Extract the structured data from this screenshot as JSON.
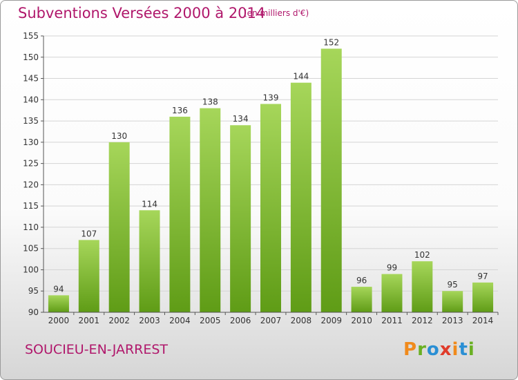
{
  "header": {
    "title": "Subventions Versées 2000 à 2014",
    "unit": "(en milliers d'€)"
  },
  "footer": {
    "commune": "SOUCIEU-EN-JARREST",
    "logo_letters": [
      "P",
      "r",
      "o",
      "x",
      "i",
      "t",
      "i"
    ],
    "logo_colors": [
      "#f08a1c",
      "#6ab023",
      "#2a8fd4",
      "#e03b2a",
      "#f08a1c",
      "#2a8fd4",
      "#6ab023"
    ]
  },
  "colors": {
    "bar_top": "#a6d65a",
    "bar_bottom": "#5f9c16",
    "grid": "#d4d4d4",
    "axis": "#555555",
    "text": "#333333"
  },
  "chart_data": {
    "type": "bar",
    "categories": [
      "2000",
      "2001",
      "2002",
      "2003",
      "2004",
      "2005",
      "2006",
      "2007",
      "2008",
      "2009",
      "2010",
      "2011",
      "2012",
      "2013",
      "2014"
    ],
    "values": [
      94,
      107,
      130,
      114,
      136,
      138,
      134,
      139,
      144,
      152,
      96,
      99,
      102,
      95,
      97
    ],
    "title": "Subventions Versées 2000 à 2014",
    "ylim": [
      90,
      155
    ],
    "yticks": [
      90,
      95,
      100,
      105,
      110,
      115,
      120,
      125,
      130,
      135,
      140,
      145,
      150,
      155
    ],
    "grid": true,
    "data_labels": true
  }
}
